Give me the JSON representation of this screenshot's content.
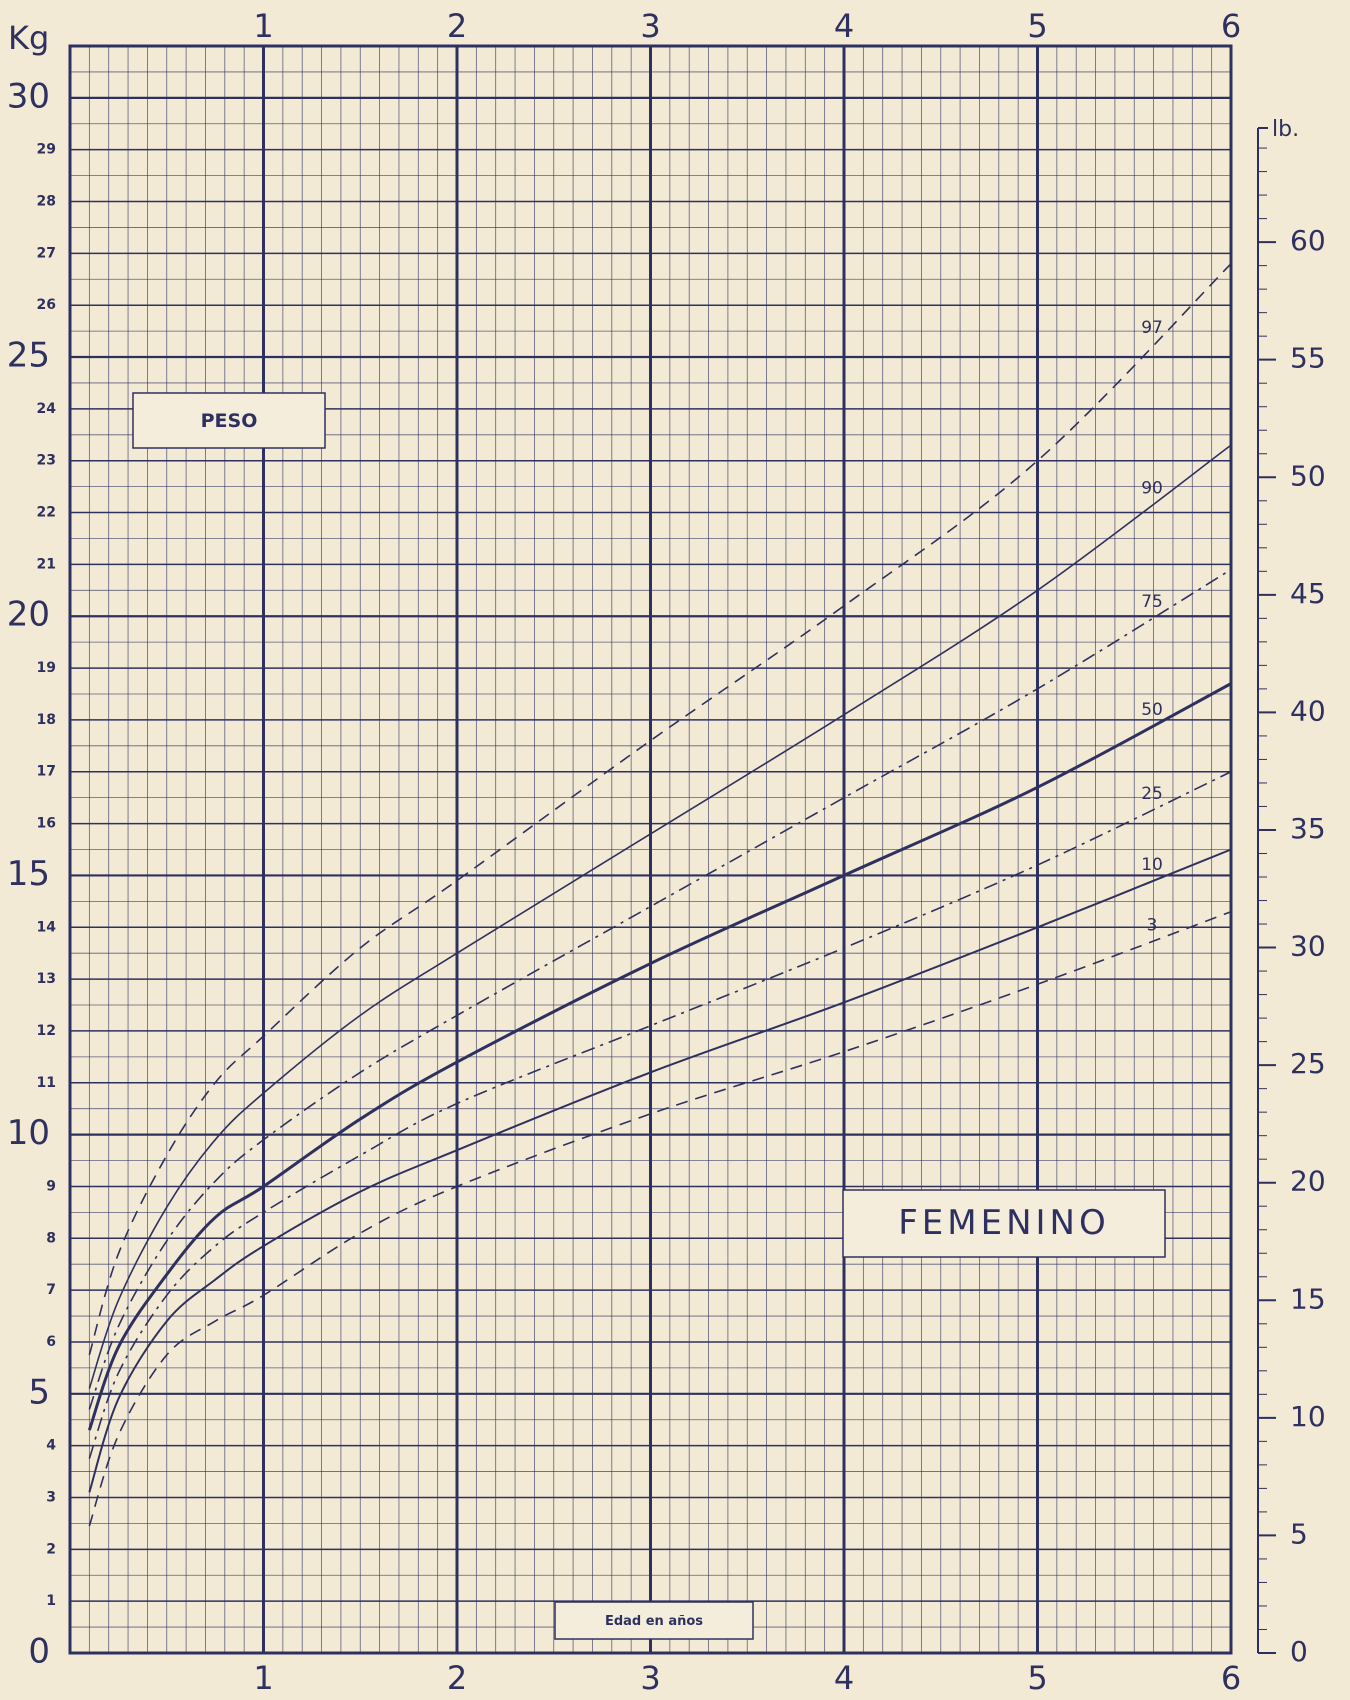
{
  "chart_data": {
    "type": "line",
    "y_axis_label": "Kg",
    "y2_axis_label": "lb.",
    "title": "PESO",
    "subtitle": "FEMENINO",
    "x_axis_label": "Edad en años",
    "x": [
      0.1,
      0.25,
      0.5,
      0.75,
      1,
      1.5,
      2,
      3,
      4,
      5,
      6
    ],
    "series": [
      {
        "name": "97",
        "color": "#2e3160",
        "dash": "dashed",
        "width": 1.6,
        "values": [
          5.75,
          7.7,
          9.6,
          11.0,
          11.9,
          13.6,
          14.9,
          17.6,
          20.2,
          23.0,
          26.8
        ]
      },
      {
        "name": "90",
        "color": "#2e3160",
        "dash": "solid",
        "width": 1.6,
        "values": [
          5.1,
          6.8,
          8.6,
          9.9,
          10.8,
          12.3,
          13.5,
          15.8,
          18.1,
          20.5,
          23.3
        ]
      },
      {
        "name": "75",
        "color": "#2e3160",
        "dash": "dashdot",
        "width": 1.6,
        "values": [
          4.7,
          6.3,
          7.95,
          9.1,
          9.9,
          11.2,
          12.3,
          14.4,
          16.5,
          18.6,
          20.9
        ]
      },
      {
        "name": "50",
        "color": "#2e3160",
        "dash": "solid",
        "width": 3,
        "values": [
          4.3,
          5.9,
          7.3,
          8.4,
          9.0,
          10.3,
          11.4,
          13.3,
          15.0,
          16.7,
          18.7
        ]
      },
      {
        "name": "25",
        "color": "#2e3160",
        "dash": "dashdot",
        "width": 1.6,
        "values": [
          3.75,
          5.4,
          6.9,
          7.85,
          8.5,
          9.6,
          10.6,
          12.1,
          13.6,
          15.2,
          17.0
        ]
      },
      {
        "name": "10",
        "color": "#2e3160",
        "dash": "solid",
        "width": 2,
        "values": [
          3.1,
          4.9,
          6.4,
          7.2,
          7.85,
          8.9,
          9.7,
          11.2,
          12.55,
          14.0,
          15.5
        ]
      },
      {
        "name": "3",
        "color": "#2e3160",
        "dash": "dashed",
        "width": 1.6,
        "values": [
          2.45,
          4.2,
          5.75,
          6.4,
          6.9,
          8.1,
          9.0,
          10.4,
          11.6,
          12.9,
          14.3
        ]
      }
    ],
    "xlim": [
      0,
      6
    ],
    "xticks": [
      1,
      2,
      3,
      4,
      5,
      6
    ],
    "ylim": [
      0,
      31
    ],
    "yticks": [
      0,
      1,
      2,
      3,
      4,
      5,
      6,
      7,
      8,
      9,
      10,
      11,
      12,
      13,
      14,
      15,
      16,
      17,
      18,
      19,
      20,
      21,
      22,
      23,
      24,
      25,
      26,
      27,
      28,
      29,
      30
    ],
    "y2lim": [
      0,
      68.34
    ],
    "y2ticks": [
      0,
      5,
      10,
      15,
      20,
      25,
      30,
      35,
      40,
      45,
      50,
      55,
      60
    ],
    "grid": true,
    "grid_minor_x": 0.1,
    "grid_minor_y": 0.5
  }
}
